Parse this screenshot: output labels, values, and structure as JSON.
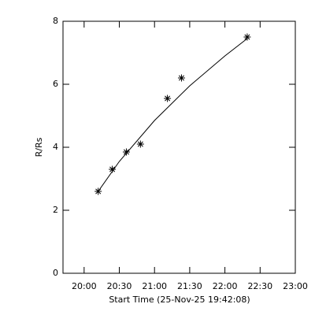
{
  "chart_data": {
    "type": "scatter",
    "xlabel": "Start Time (25-Nov-25 19:42:08)",
    "ylabel": "R/Rs",
    "xlim": [
      "19:42",
      "23:00"
    ],
    "xticks": [
      "20:00",
      "20:30",
      "21:00",
      "21:30",
      "22:00",
      "22:30",
      "23:00"
    ],
    "ylim": [
      0,
      8
    ],
    "yticks": [
      0,
      2,
      4,
      6,
      8
    ],
    "color": "#000000",
    "x": [
      "20:12",
      "20:24",
      "20:36",
      "20:48",
      "21:11",
      "21:23",
      "22:19"
    ],
    "values": [
      2.6,
      3.3,
      3.85,
      4.1,
      5.55,
      6.2,
      7.5
    ],
    "fit": {
      "x": [
        "20:12",
        "20:30",
        "21:00",
        "21:30",
        "22:00",
        "22:19"
      ],
      "values": [
        2.6,
        3.55,
        4.85,
        5.95,
        6.9,
        7.45
      ]
    }
  }
}
